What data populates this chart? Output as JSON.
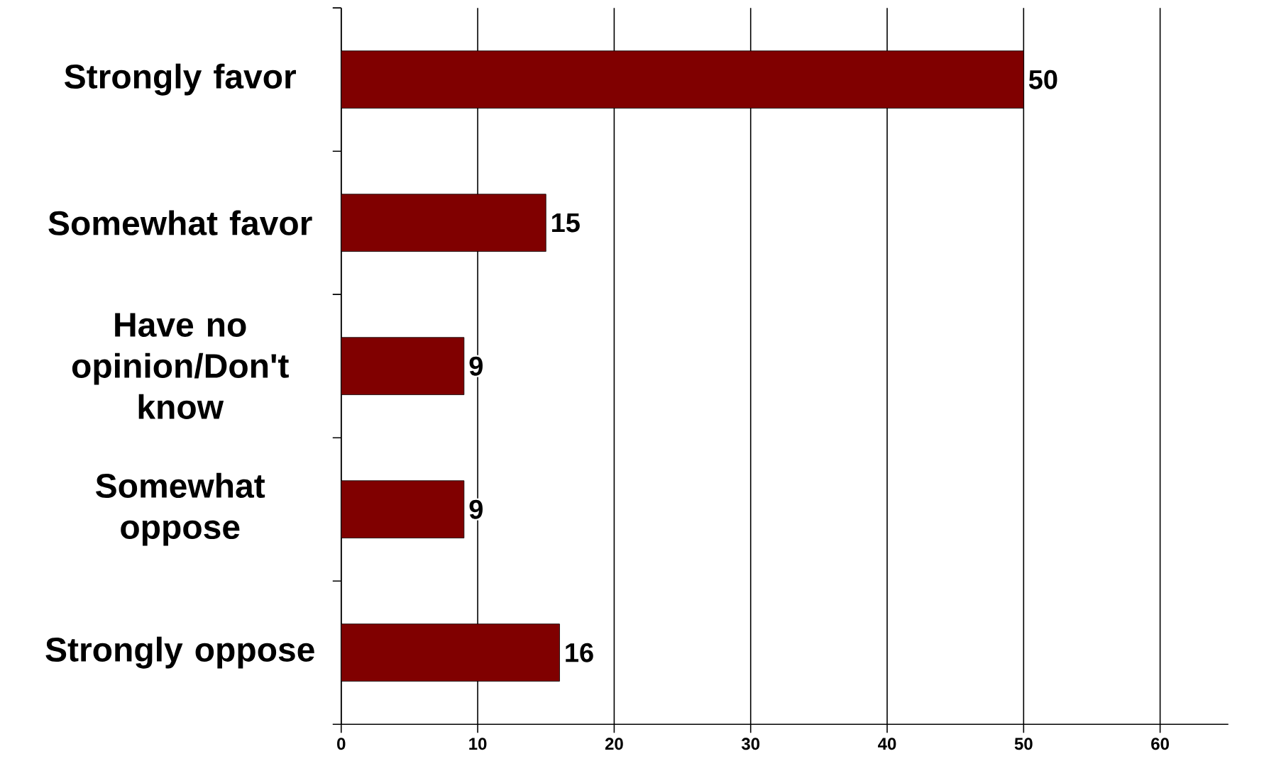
{
  "chart_data": {
    "type": "bar",
    "orientation": "horizontal",
    "categories": [
      "Strongly favor",
      "Somewhat favor",
      "Have no opinion/Don't know",
      "Somewhat oppose",
      "Strongly oppose"
    ],
    "values": [
      50,
      15,
      9,
      9,
      16
    ],
    "color": "#800000",
    "xlim": [
      0,
      65
    ],
    "xticks": [
      0,
      10,
      20,
      30,
      40,
      50,
      60
    ],
    "grid": "x",
    "data_labels": true
  }
}
